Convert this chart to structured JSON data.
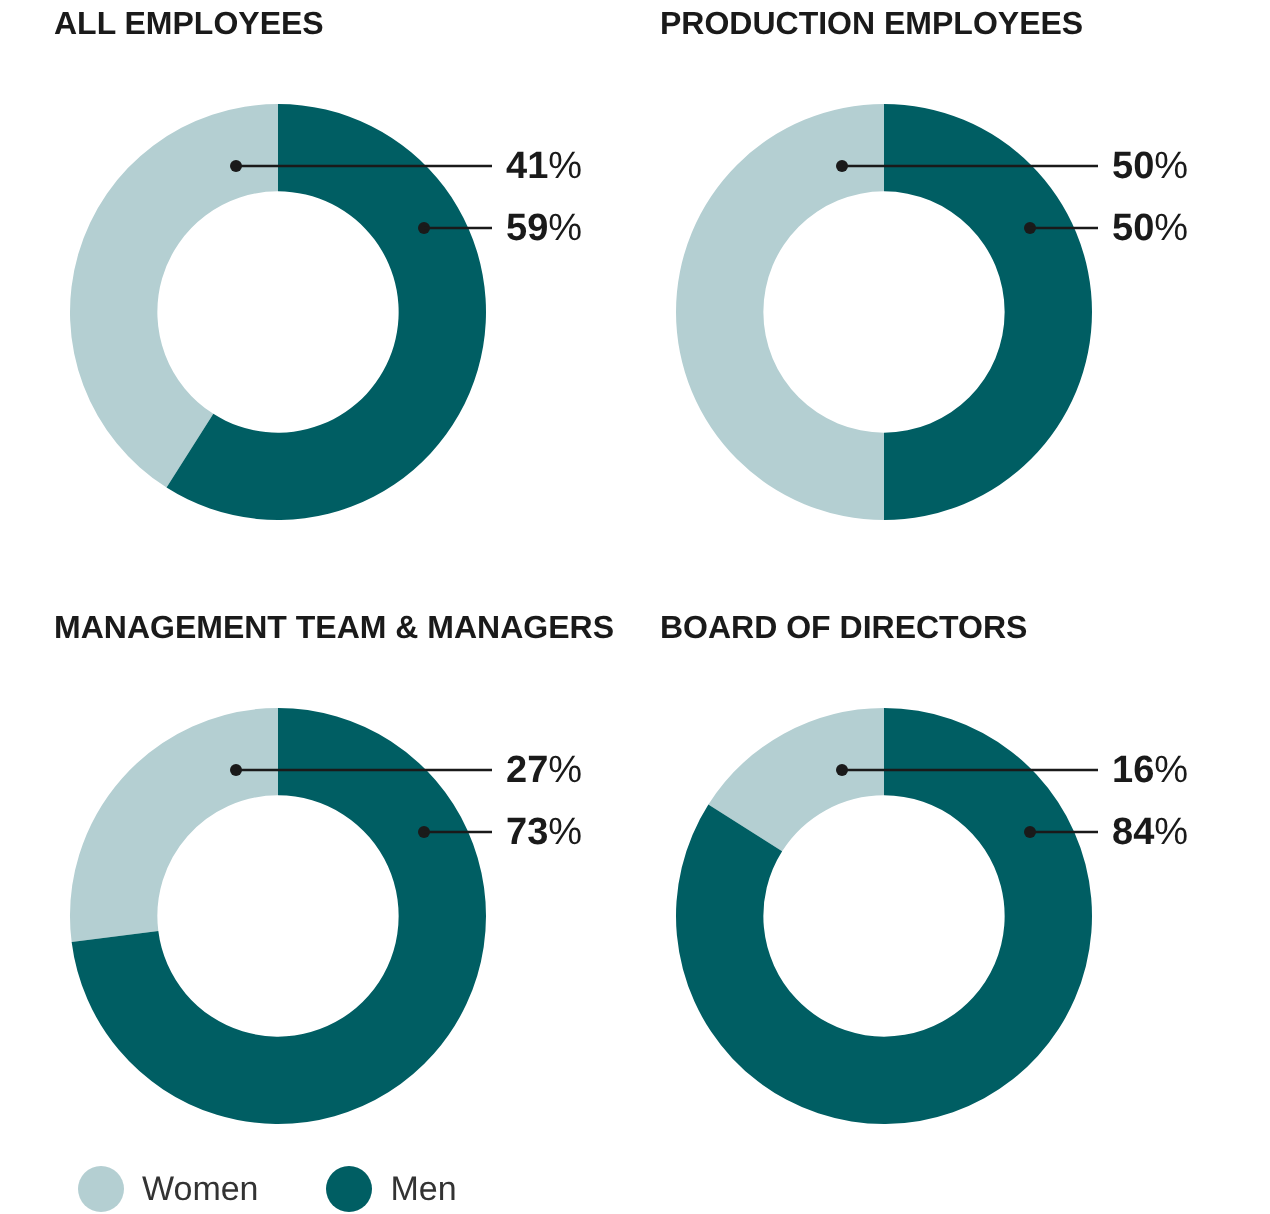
{
  "chart_data": [
    {
      "type": "donut",
      "title": "ALL EMPLOYEES",
      "categories": [
        "Women",
        "Men"
      ],
      "values": [
        41,
        59
      ],
      "value_labels": [
        "41%",
        "59%"
      ],
      "colors": [
        "#b4cfd2",
        "#005e63"
      ],
      "legend": "bottom"
    },
    {
      "type": "donut",
      "title": "PRODUCTION EMPLOYEES",
      "categories": [
        null,
        null
      ],
      "values": [
        50,
        50
      ],
      "value_labels": [
        "50%",
        "50%"
      ],
      "colors": [
        "#b4cfd2",
        "#005e63"
      ]
    },
    {
      "type": "donut",
      "title": "MANAGEMENT TEAM & MANAGERS",
      "categories": [
        null,
        null
      ],
      "values": [
        27,
        73
      ],
      "value_labels": [
        "27%",
        "73%"
      ],
      "colors": [
        "#b4cfd2",
        "#005e63"
      ]
    },
    {
      "type": "donut",
      "title": "BOARD OF DIRECTORS",
      "categories": [
        null,
        null
      ],
      "values": [
        16,
        84
      ],
      "value_labels": [
        "16%",
        "84%"
      ],
      "colors": [
        "#b4cfd2",
        "#005e63"
      ]
    }
  ]
}
